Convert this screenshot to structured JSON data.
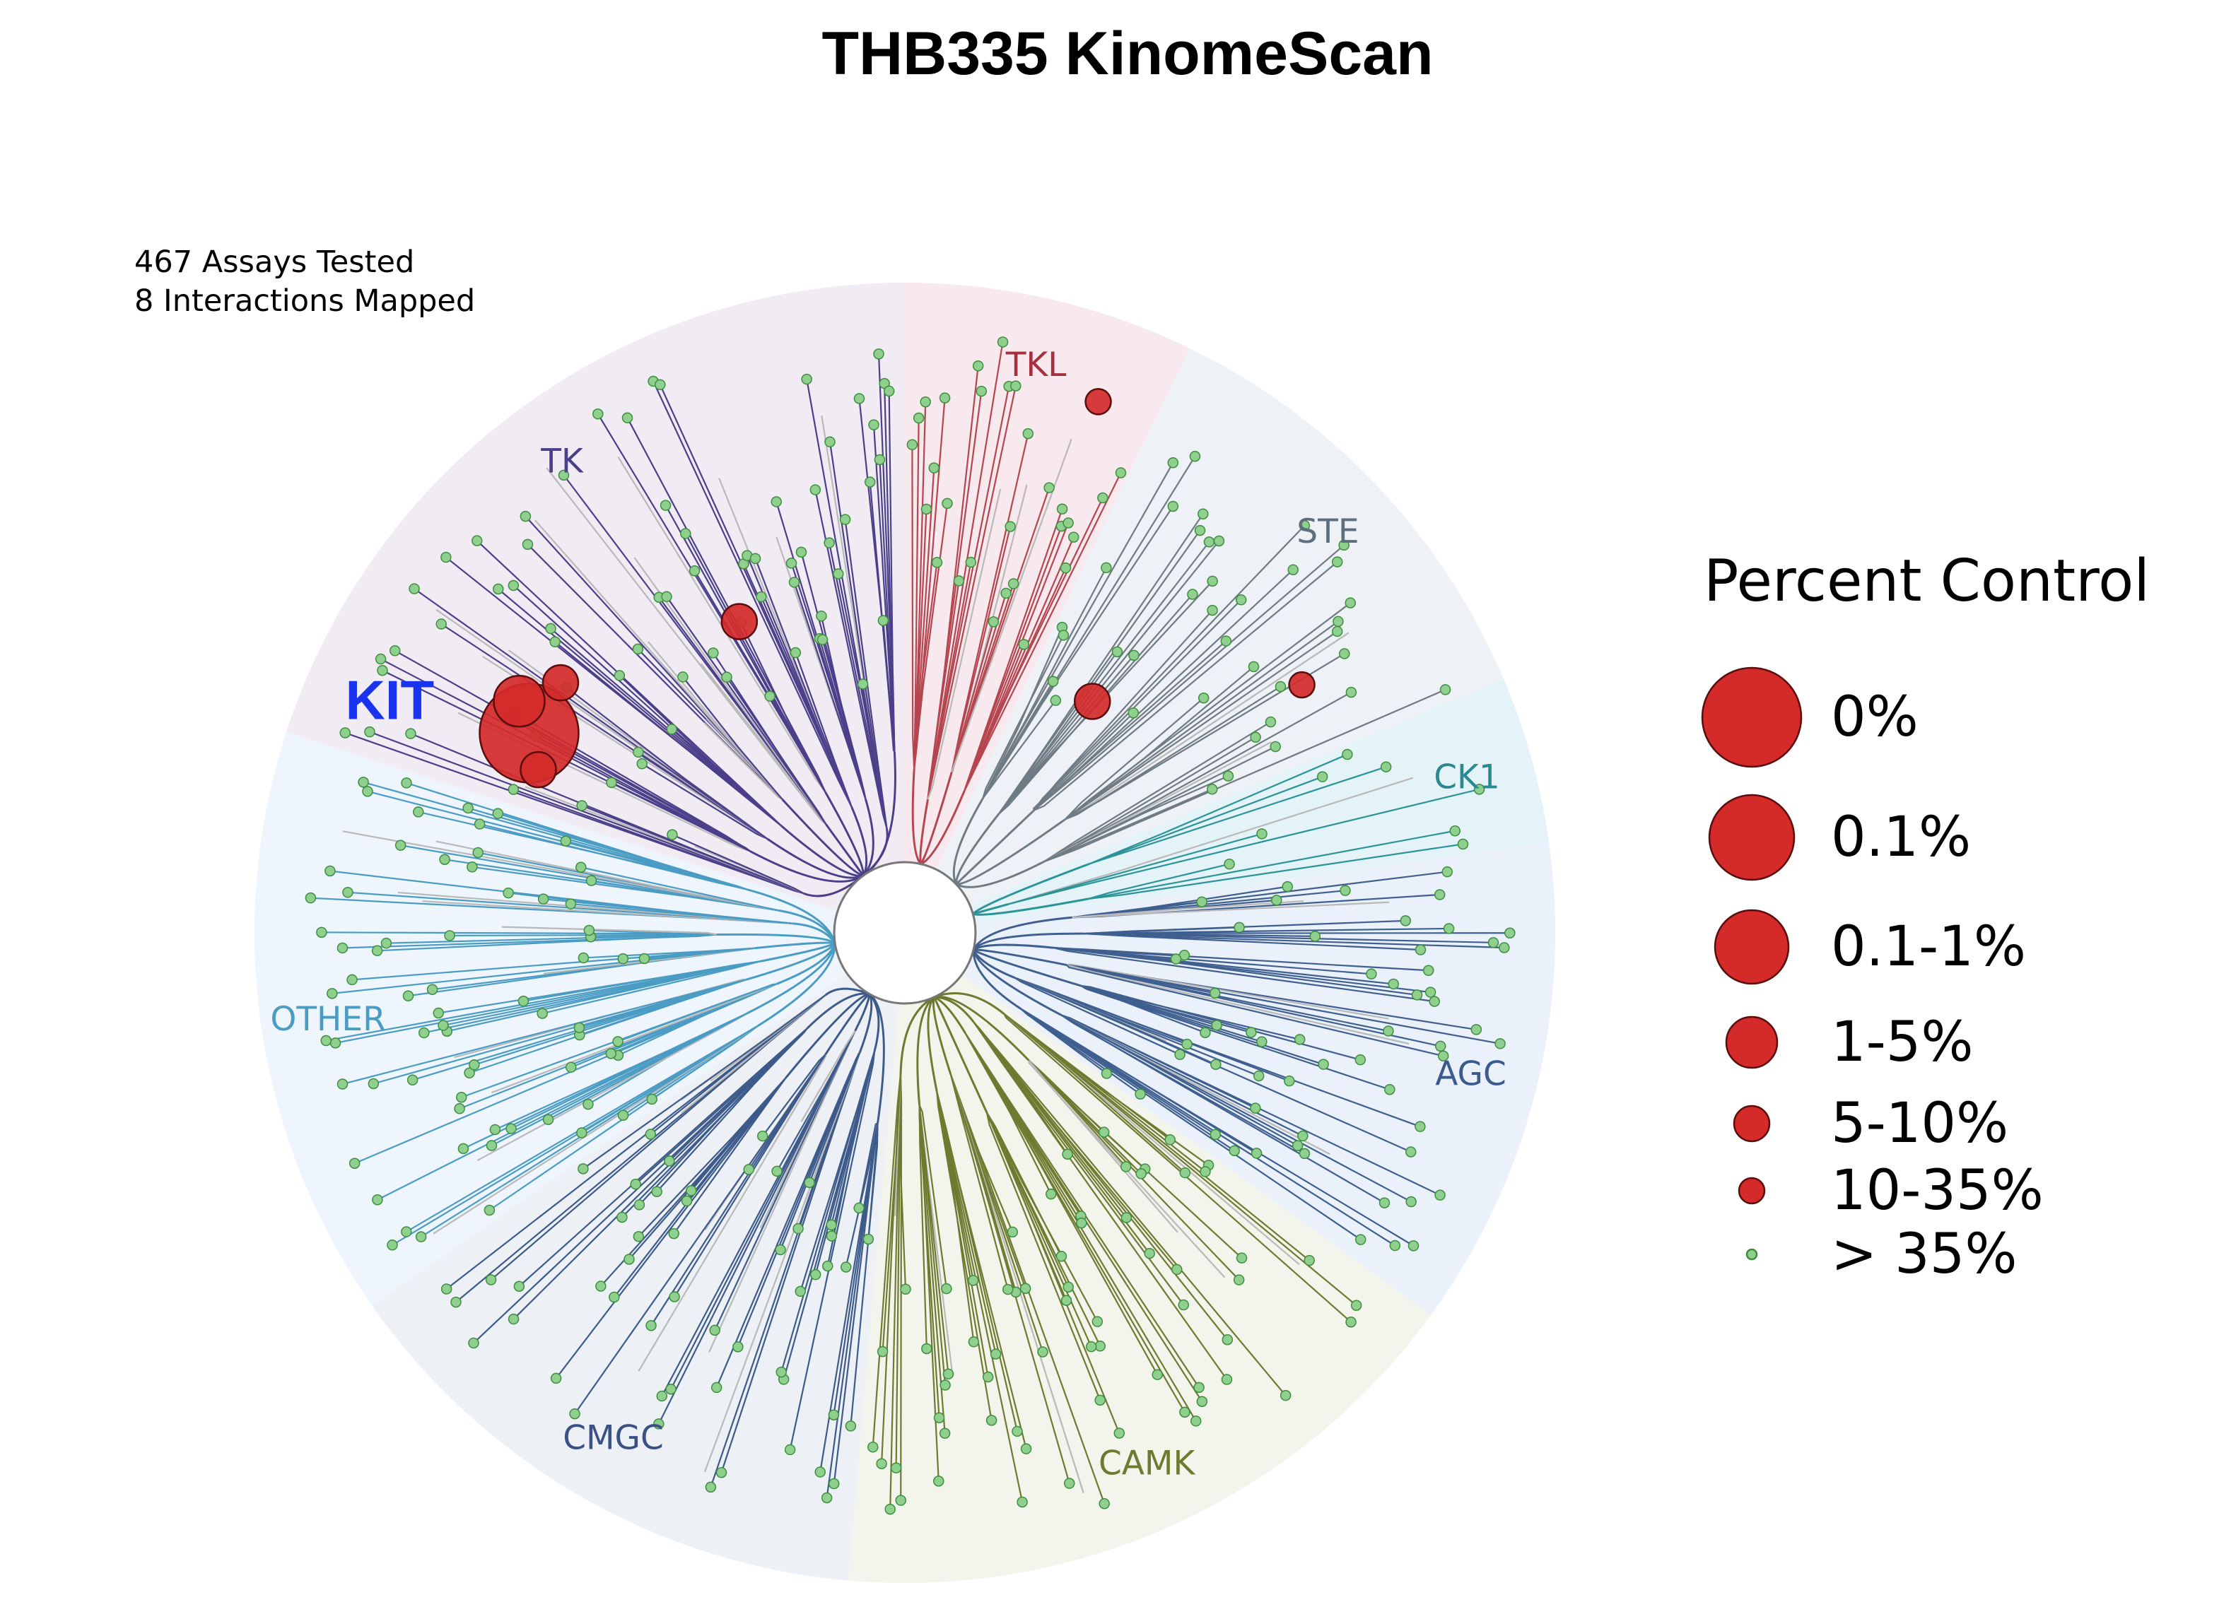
{
  "chart_data": {
    "type": "kinome-tree",
    "title": "THB335 KinomeScan",
    "annotations": {
      "assays_tested": "467 Assays Tested",
      "interactions_mapped": "8 Interactions Mapped"
    },
    "groups": [
      {
        "name": "TKL",
        "start_deg": 0,
        "end_deg": 26,
        "band_color": "#f7e9ee",
        "branch_color": "#b5454f",
        "label_color": "#a63040",
        "leaves": 30
      },
      {
        "name": "STE",
        "start_deg": 26,
        "end_deg": 67,
        "band_color": "#eef1f5",
        "branch_color": "#6e7a84",
        "label_color": "#5d6f7d",
        "leaves": 42
      },
      {
        "name": "CK1",
        "start_deg": 67,
        "end_deg": 82,
        "band_color": "#e4f3f7",
        "branch_color": "#2a9499",
        "label_color": "#2a8a8f",
        "leaves": 10
      },
      {
        "name": "AGC",
        "start_deg": 82,
        "end_deg": 126,
        "band_color": "#eaf1fa",
        "branch_color": "#3f5f8f",
        "label_color": "#3b5b8e",
        "leaves": 60
      },
      {
        "name": "CAMK",
        "start_deg": 126,
        "end_deg": 185,
        "band_color": "#f3f4ec",
        "branch_color": "#6f7a30",
        "label_color": "#6f7a30",
        "leaves": 70
      },
      {
        "name": "CMGC",
        "start_deg": 185,
        "end_deg": 235,
        "band_color": "#edf1f6",
        "branch_color": "#3d5a8a",
        "label_color": "#3b5186",
        "leaves": 60
      },
      {
        "name": "OTHER",
        "start_deg": 235,
        "end_deg": 288,
        "band_color": "#eef5fc",
        "branch_color": "#4a9cc4",
        "label_color": "#4a9cc4",
        "leaves": 80
      },
      {
        "name": "TK",
        "start_deg": 288,
        "end_deg": 360,
        "band_color": "#f1ecf4",
        "branch_color": "#4c3f8a",
        "label_color": "#4c3f8a",
        "leaves": 90
      }
    ],
    "hits": [
      {
        "name": "KIT",
        "group": "TK",
        "angle_deg": 298,
        "radius_frac": 0.7,
        "category": "0%",
        "label": "KIT",
        "label_color": "#1a33ee"
      },
      {
        "name": "TK-hit-1",
        "group": "TK",
        "angle_deg": 301,
        "radius_frac": 0.74,
        "category": "1-5%"
      },
      {
        "name": "TK-hit-2",
        "group": "TK",
        "angle_deg": 294,
        "radius_frac": 0.66,
        "category": "5-10%"
      },
      {
        "name": "TK-hit-3",
        "group": "TK",
        "angle_deg": 306,
        "radius_frac": 0.7,
        "category": "5-10%"
      },
      {
        "name": "TK-hit-4",
        "group": "TK",
        "angle_deg": 332,
        "radius_frac": 0.58,
        "category": "5-10%"
      },
      {
        "name": "TKL-hit-1",
        "group": "TKL",
        "angle_deg": 20,
        "radius_frac": 0.93,
        "category": "10-35%"
      },
      {
        "name": "STE-hit-1",
        "group": "STE",
        "angle_deg": 39,
        "radius_frac": 0.49,
        "category": "5-10%"
      },
      {
        "name": "STE-hit-2",
        "group": "STE",
        "angle_deg": 58,
        "radius_frac": 0.77,
        "category": "10-35%"
      }
    ],
    "legend": {
      "title": "Percent Control",
      "categories": [
        {
          "label": "0%",
          "fill": "#d42a2a"
        },
        {
          "label": "0.1%",
          "fill": "#d42a2a"
        },
        {
          "label": "0.1-1%",
          "fill": "#d42a2a"
        },
        {
          "label": "1-5%",
          "fill": "#d42a2a"
        },
        {
          "label": "5-10%",
          "fill": "#d42a2a"
        },
        {
          "label": "10-35%",
          "fill": "#d42a2a"
        },
        {
          "label": "> 35%",
          "fill": "#8fd08f"
        }
      ]
    },
    "colors": {
      "hit_fill": "#d42a2a",
      "hit_stroke": "#5a0d0d",
      "non_hit_fill": "#8fd08f",
      "non_hit_stroke": "#3e8e3e",
      "untested_branch": "#b9b9b9"
    }
  }
}
